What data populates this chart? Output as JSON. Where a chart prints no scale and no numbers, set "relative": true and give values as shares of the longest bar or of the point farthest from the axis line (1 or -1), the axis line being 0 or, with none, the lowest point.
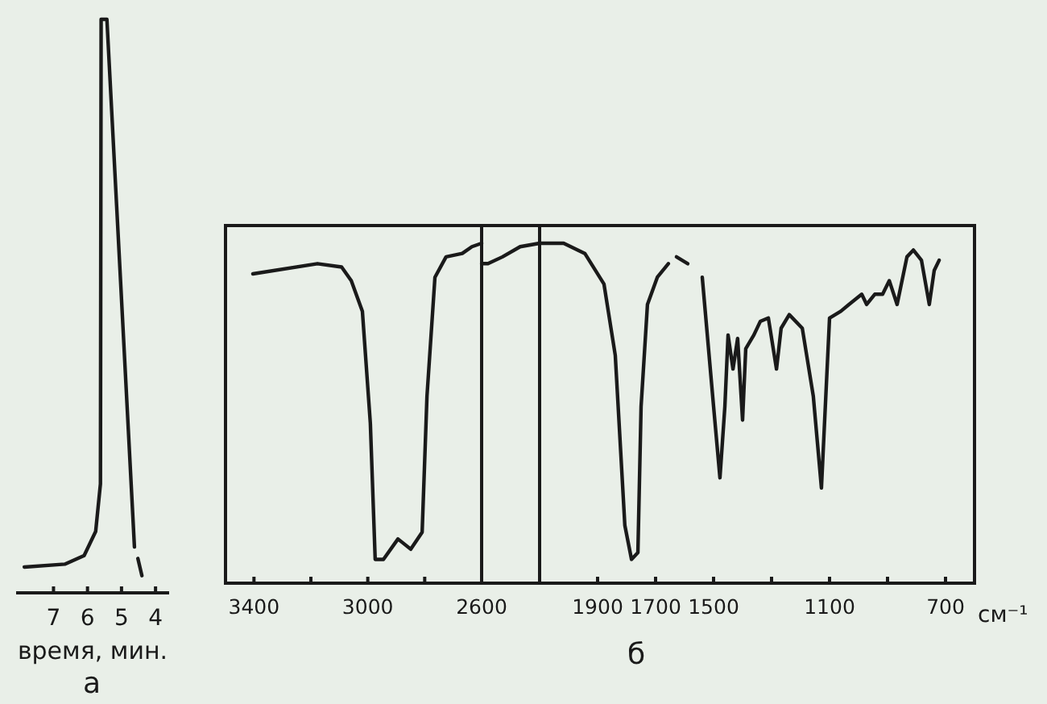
{
  "chart_data": [
    {
      "type": "line",
      "title": "а",
      "xlabel": "время, мин.",
      "relative": true,
      "xlim": [
        8.1,
        3.6
      ],
      "xticks": [
        7,
        6,
        5,
        4
      ],
      "series": [
        {
          "color": "#1a1a1a",
          "x": [
            7.86,
            6.67,
            6.1,
            5.76,
            5.62,
            5.6,
            5.43,
            4.62
          ],
          "values": [
            0.045,
            0.05,
            0.065,
            0.107,
            0.19,
            1,
            1,
            0.08
          ]
        },
        {
          "color": "#1a1a1a",
          "x": [
            4.52,
            4.4
          ],
          "values": [
            0.06,
            0.03
          ]
        }
      ]
    },
    {
      "type": "line",
      "relative": true,
      "xlim": [
        3500,
        2600
      ],
      "xticks": [
        3400,
        {
          "value": 3200,
          "label": null
        },
        3000,
        {
          "value": 2800,
          "label": null
        },
        2600
      ],
      "series": [
        {
          "color": "#1a1a1a",
          "x": [
            3404,
            3177,
            3092,
            3058,
            3019,
            2991,
            2974,
            2945,
            2894,
            2849,
            2809,
            2792,
            2764,
            2725,
            2668,
            2634,
            2600
          ],
          "values": [
            0.91,
            0.94,
            0.93,
            0.89,
            0.8,
            0.47,
            0.07,
            0.07,
            0.13,
            0.1,
            0.15,
            0.55,
            0.9,
            0.96,
            0.97,
            0.99,
            1
          ]
        }
      ]
    },
    {
      "type": "line",
      "title": "б",
      "xlabel": "см⁻¹",
      "relative": true,
      "xlim": [
        2300,
        600
      ],
      "xticks": [
        1900,
        1700,
        1500,
        {
          "value": 1300,
          "label": null
        },
        1100,
        {
          "value": 900,
          "label": null
        },
        700
      ],
      "ref_lines": [
        {
          "axis": "x",
          "value": 2100
        }
      ],
      "series": [
        {
          "color": "#1a1a1a",
          "x": [
            2300,
            2278,
            2228,
            2167,
            2100,
            2017,
            1944,
            1878,
            1839,
            1806,
            1783,
            1761,
            1750,
            1728,
            1694,
            1656
          ],
          "values": [
            0.94,
            0.94,
            0.96,
            0.99,
            1,
            1,
            0.97,
            0.88,
            0.67,
            0.17,
            0.07,
            0.09,
            0.52,
            0.82,
            0.9,
            0.94
          ]
        },
        {
          "color": "#1a1a1a",
          "x": [
            1628,
            1589
          ],
          "values": [
            0.96,
            0.94
          ]
        },
        {
          "color": "#1a1a1a",
          "x": [
            1539,
            1500,
            1478,
            1461,
            1450,
            1433,
            1417,
            1400,
            1389,
            1361,
            1339,
            1311,
            1283,
            1267,
            1239,
            1194,
            1156,
            1128,
            1100,
            1061,
            1033,
            989,
            972,
            944,
            917,
            894,
            867,
            833,
            811,
            783,
            756,
            739,
            722
          ],
          "values": [
            0.9,
            0.52,
            0.31,
            0.52,
            0.73,
            0.63,
            0.72,
            0.48,
            0.69,
            0.73,
            0.77,
            0.78,
            0.63,
            0.75,
            0.79,
            0.75,
            0.55,
            0.28,
            0.78,
            0.8,
            0.82,
            0.85,
            0.82,
            0.85,
            0.85,
            0.89,
            0.82,
            0.96,
            0.98,
            0.95,
            0.82,
            0.92,
            0.95
          ]
        }
      ]
    }
  ]
}
